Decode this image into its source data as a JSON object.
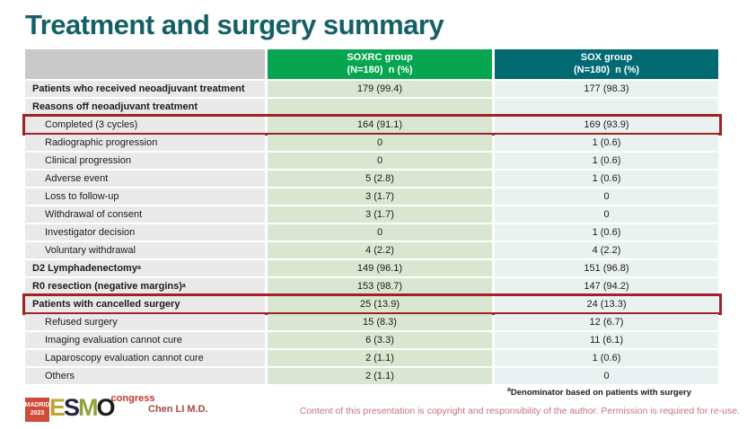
{
  "title": "Treatment and surgery summary",
  "colors": {
    "title": "#136066",
    "header_soxrc_bg": "#06a550",
    "header_sox_bg": "#006972",
    "header_spacer_bg": "#c9c9c9",
    "label_cell_bg": "#e9e9e9",
    "soxrc_cell_bg": "#d9e6d0",
    "sox_cell_bg": "#eaf2f1",
    "highlight_border": "#a02226",
    "presenter_text": "#a3493f",
    "copyright_text": "#c3747e",
    "logo_madrid_bg": "#d04a38",
    "logo_congress": "#c0392b"
  },
  "table": {
    "columns": [
      {
        "line1": "SOXRC group",
        "line2": "(N=180)  n (%)"
      },
      {
        "line1": "SOX group",
        "line2": "(N=180)  n (%)"
      }
    ],
    "rows": [
      {
        "label": "Patients who received neoadjuvant treatment",
        "sup": "",
        "bold": true,
        "indent": false,
        "soxrc": "179 (99.4)",
        "sox": "177 (98.3)",
        "highlight": false
      },
      {
        "label": "Reasons off neoadjuvant treatment",
        "sup": "",
        "bold": true,
        "indent": false,
        "soxrc": "",
        "sox": "",
        "highlight": false
      },
      {
        "label": "Completed (3 cycles)",
        "sup": "",
        "bold": false,
        "indent": true,
        "soxrc": "164 (91.1)",
        "sox": "169 (93.9)",
        "highlight": true
      },
      {
        "label": "Radiographic progression",
        "sup": "",
        "bold": false,
        "indent": true,
        "soxrc": "0",
        "sox": "1 (0.6)",
        "highlight": false
      },
      {
        "label": "Clinical progression",
        "sup": "",
        "bold": false,
        "indent": true,
        "soxrc": "0",
        "sox": "1 (0.6)",
        "highlight": false
      },
      {
        "label": "Adverse event",
        "sup": "",
        "bold": false,
        "indent": true,
        "soxrc": "5 (2.8)",
        "sox": "1 (0.6)",
        "highlight": false
      },
      {
        "label": "Loss to follow-up",
        "sup": "",
        "bold": false,
        "indent": true,
        "soxrc": "3 (1.7)",
        "sox": "0",
        "highlight": false
      },
      {
        "label": "Withdrawal of consent",
        "sup": "",
        "bold": false,
        "indent": true,
        "soxrc": "3 (1.7)",
        "sox": "0",
        "highlight": false
      },
      {
        "label": "Investigator decision",
        "sup": "",
        "bold": false,
        "indent": true,
        "soxrc": "0",
        "sox": "1 (0.6)",
        "highlight": false
      },
      {
        "label": "Voluntary withdrawal",
        "sup": "",
        "bold": false,
        "indent": true,
        "soxrc": "4 (2.2)",
        "sox": "4 (2.2)",
        "highlight": false
      },
      {
        "label": "D2 Lymphadenectomy",
        "sup": "a",
        "bold": true,
        "indent": false,
        "soxrc": "149 (96.1)",
        "sox": "151 (96.8)",
        "highlight": false
      },
      {
        "label": "R0 resection (negative margins)",
        "sup": "a",
        "bold": true,
        "indent": false,
        "soxrc": "153 (98.7)",
        "sox": "147 (94.2)",
        "highlight": false
      },
      {
        "label": "Patients with cancelled surgery",
        "sup": "",
        "bold": true,
        "indent": false,
        "soxrc": "25 (13.9)",
        "sox": "24 (13.3)",
        "highlight": true
      },
      {
        "label": "Refused surgery",
        "sup": "",
        "bold": false,
        "indent": true,
        "soxrc": "15 (8.3)",
        "sox": "12 (6.7)",
        "highlight": false
      },
      {
        "label": "Imaging evaluation cannot cure",
        "sup": "",
        "bold": false,
        "indent": true,
        "soxrc": "6 (3.3)",
        "sox": "11 (6.1)",
        "highlight": false
      },
      {
        "label": "Laparoscopy evaluation cannot cure",
        "sup": "",
        "bold": false,
        "indent": true,
        "soxrc": "2 (1.1)",
        "sox": "1 (0.6)",
        "highlight": false
      },
      {
        "label": "Others",
        "sup": "",
        "bold": false,
        "indent": true,
        "soxrc": "2 (1.1)",
        "sox": "0",
        "highlight": false
      }
    ]
  },
  "footer": {
    "logo": {
      "madrid_line1": "MADRID",
      "madrid_line2": "2023",
      "esmo": "ESMO",
      "congress": "congress"
    },
    "presenter": "Chen LI M.D.",
    "footnote_sup": "a",
    "footnote_text": "Denominator based on patients with surgery",
    "copyright": "Content of this presentation is copyright and responsibility of the author. Permission is required for re-use."
  }
}
